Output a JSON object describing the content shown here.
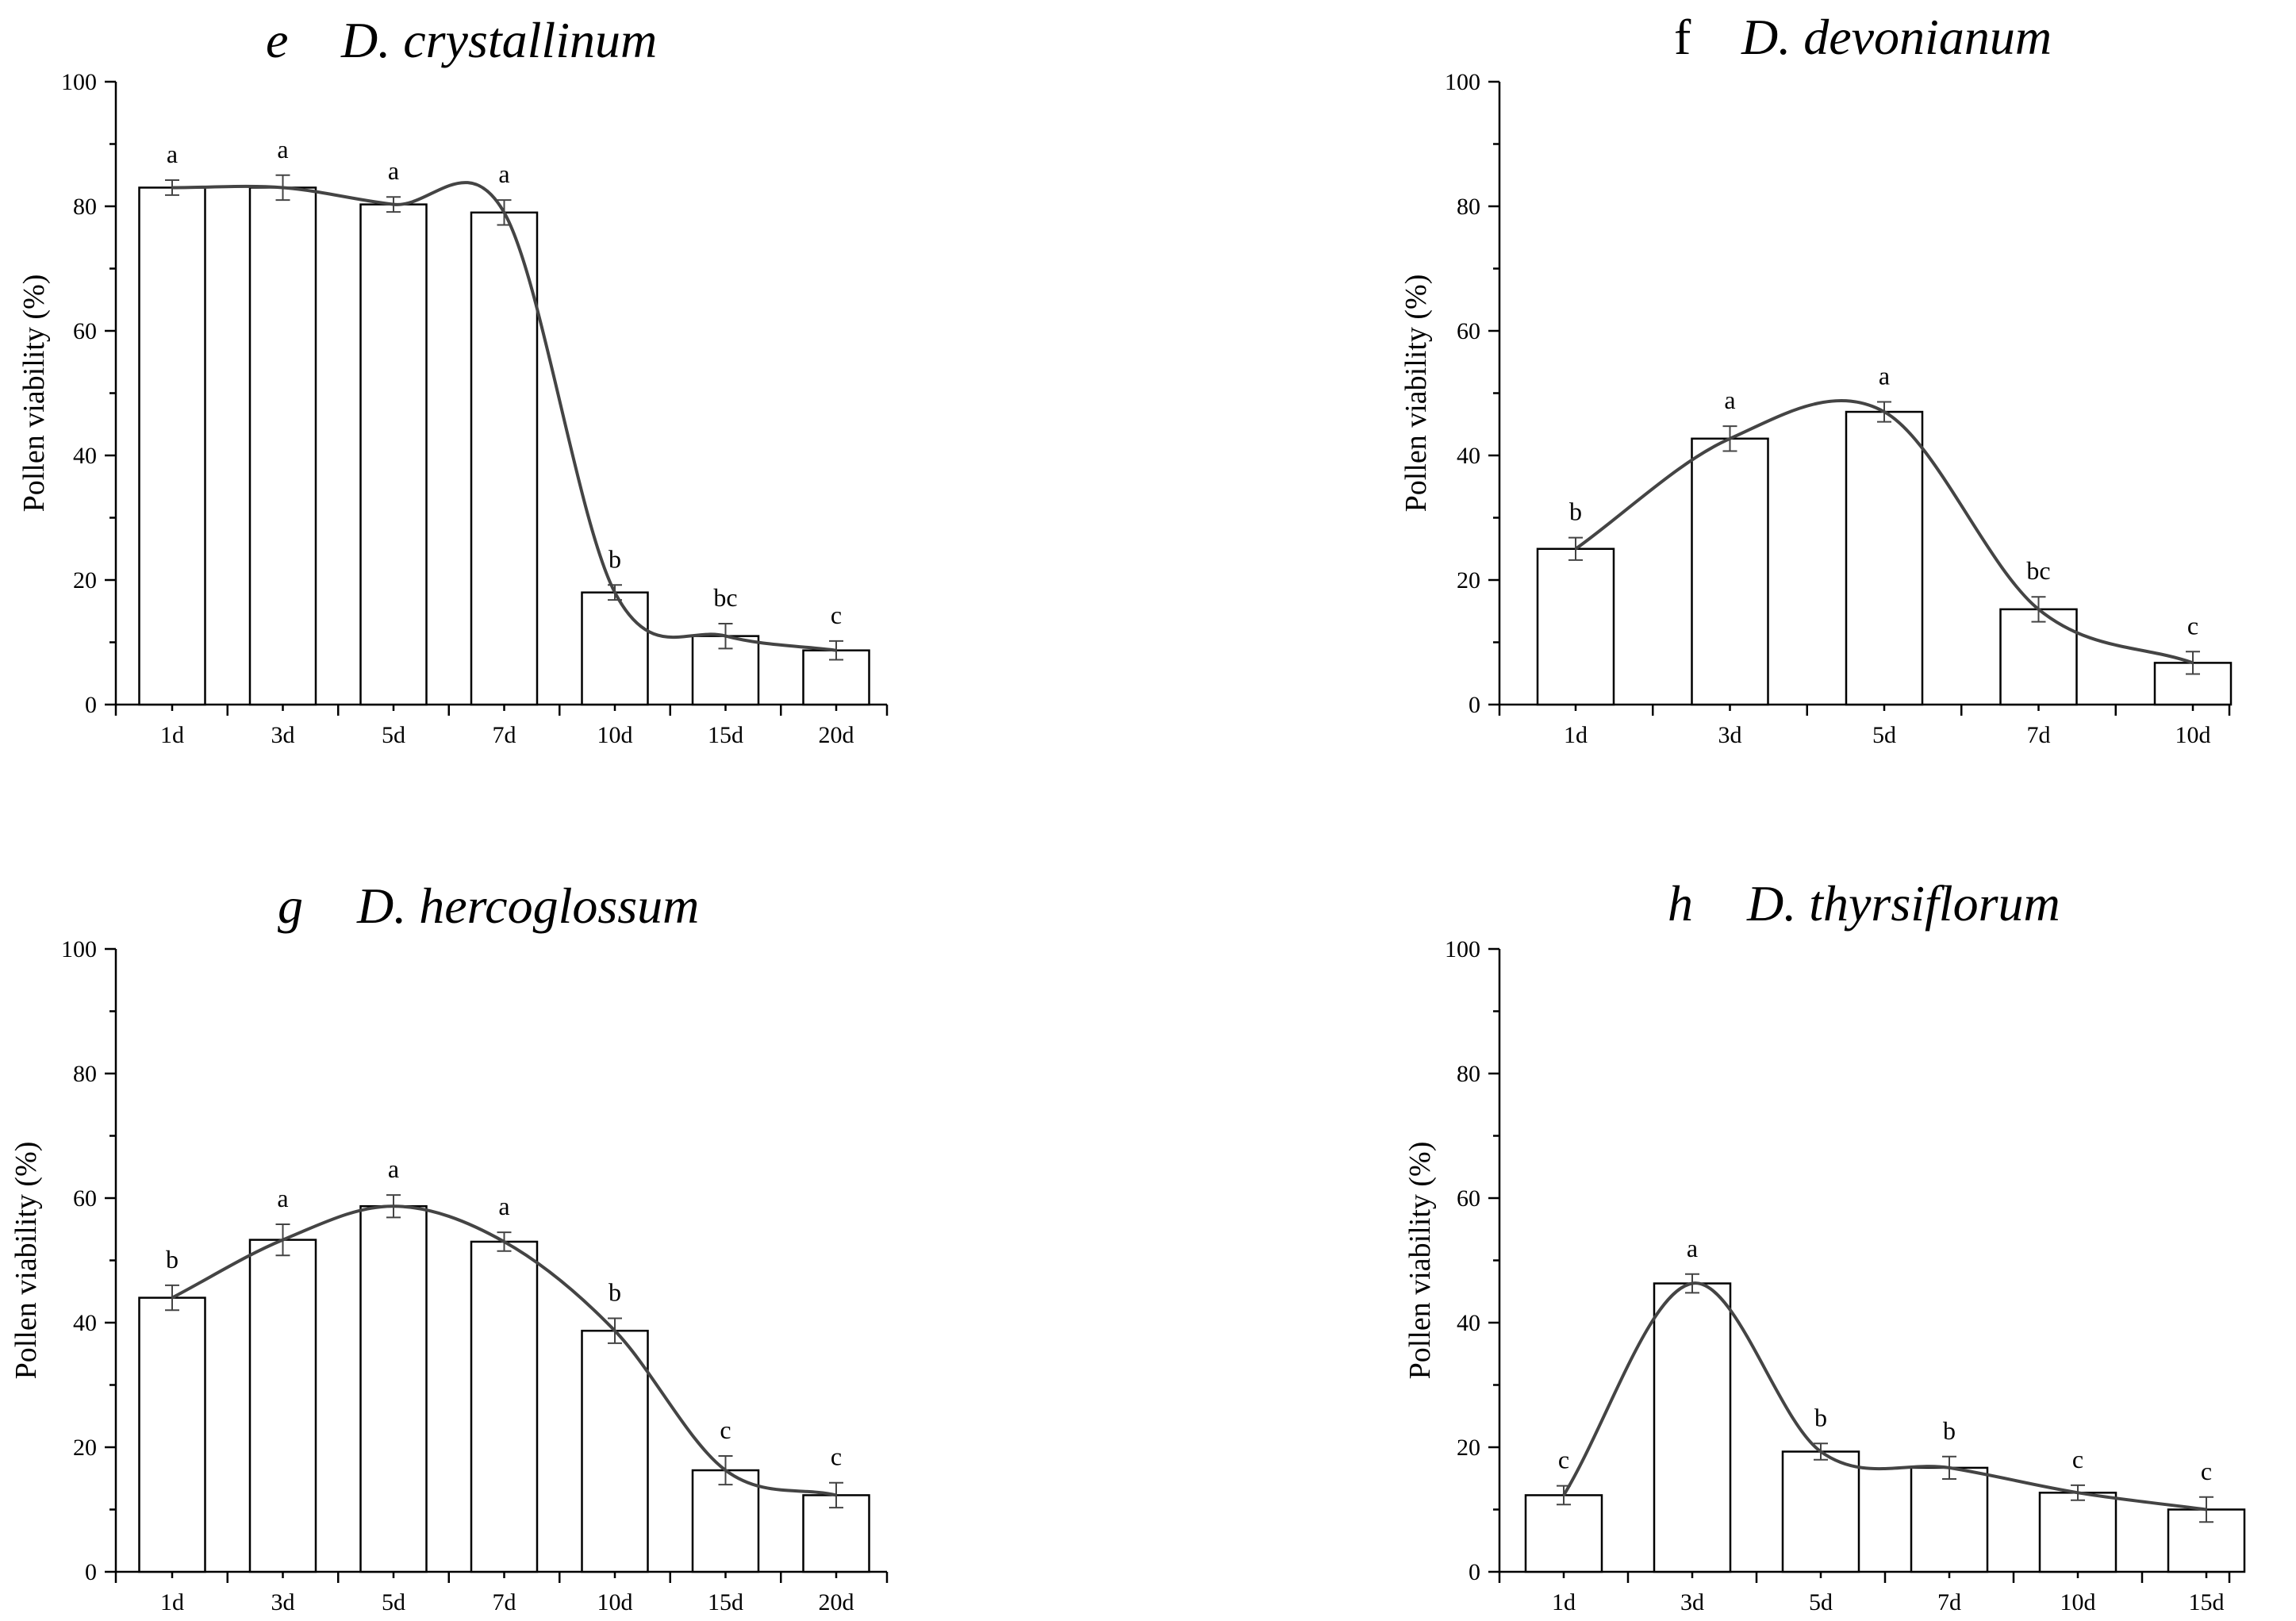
{
  "chart_data": [
    {
      "type": "bar",
      "panel_letter": "e",
      "species": "D. crystallinum",
      "letter_italic": true,
      "ylabel": "Pollen viability (%)",
      "ylim": [
        0,
        100
      ],
      "yticks": [
        "0",
        "20",
        "40",
        "60",
        "80",
        "100"
      ],
      "categories": [
        "1d",
        "3d",
        "5d",
        "7d",
        "10d",
        "15d",
        "20d"
      ],
      "values": [
        83,
        83,
        80.3,
        79,
        18,
        11,
        8.7
      ],
      "errors": [
        1.2,
        2,
        1.2,
        2,
        1.2,
        2,
        1.5
      ],
      "significance": [
        "a",
        "a",
        "a",
        "a",
        "b",
        "bc",
        "c"
      ],
      "trend_curve": "smooth fit through bar values"
    },
    {
      "type": "bar",
      "panel_letter": "f",
      "species": "D. devonianum",
      "letter_italic": false,
      "ylabel": "Pollen viability (%)",
      "ylim": [
        0,
        100
      ],
      "yticks": [
        "0",
        "20",
        "40",
        "60",
        "80",
        "100"
      ],
      "categories": [
        "1d",
        "3d",
        "5d",
        "7d",
        "10d"
      ],
      "values": [
        25,
        42.7,
        47,
        15.3,
        6.7
      ],
      "errors": [
        1.8,
        2,
        1.6,
        2,
        1.8
      ],
      "significance": [
        "b",
        "a",
        "a",
        "bc",
        "c"
      ],
      "trend_curve": "smooth fit through bar values"
    },
    {
      "type": "bar",
      "panel_letter": "g",
      "species": "D. hercoglossum",
      "letter_italic": true,
      "ylabel": "Pollen viability (%)",
      "ylim": [
        0,
        100
      ],
      "yticks": [
        "0",
        "20",
        "40",
        "60",
        "80",
        "100"
      ],
      "categories": [
        "1d",
        "3d",
        "5d",
        "7d",
        "10d",
        "15d",
        "20d"
      ],
      "values": [
        44,
        53.3,
        58.7,
        53,
        38.7,
        16.3,
        12.3
      ],
      "errors": [
        2,
        2.5,
        1.8,
        1.5,
        2,
        2.3,
        2
      ],
      "significance": [
        "b",
        "a",
        "a",
        "a",
        "b",
        "c",
        "c"
      ],
      "trend_curve": "smooth fit through bar values"
    },
    {
      "type": "bar",
      "panel_letter": "h",
      "species": "D. thyrsiflorum",
      "letter_italic": true,
      "ylabel": "Pollen viability (%)",
      "ylim": [
        0,
        100
      ],
      "yticks": [
        "0",
        "20",
        "40",
        "60",
        "80",
        "100"
      ],
      "categories": [
        "1d",
        "3d",
        "5d",
        "7d",
        "10d",
        "15d"
      ],
      "values": [
        12.3,
        46.3,
        19.3,
        16.7,
        12.7,
        10
      ],
      "errors": [
        1.5,
        1.5,
        1.3,
        1.8,
        1.2,
        2
      ],
      "significance": [
        "c",
        "a",
        "b",
        "b",
        "c",
        "c"
      ],
      "trend_curve": "smooth fit through bar values"
    }
  ]
}
